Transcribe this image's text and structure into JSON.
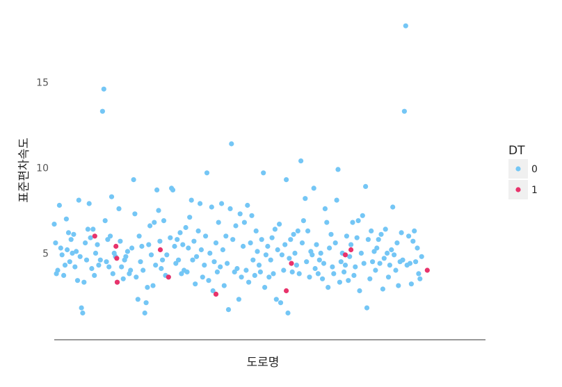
{
  "chart_data": {
    "type": "scatter",
    "xlabel": "도로명",
    "ylabel": "표준편차속도",
    "ylim": [
      0.3,
      19
    ],
    "yticks": [
      5,
      10,
      15
    ],
    "grid": false,
    "legend": {
      "title": "DT",
      "placement": "right",
      "entries": [
        {
          "label": "0",
          "color": "#74C6F5"
        },
        {
          "label": "1",
          "color": "#E8336B"
        }
      ]
    },
    "x_range": [
      0,
      100
    ],
    "series": [
      {
        "name": "0",
        "color": "#74C6F5",
        "points": [
          [
            0.0,
            6.7
          ],
          [
            0.3,
            5.6
          ],
          [
            0.5,
            3.8
          ],
          [
            0.8,
            4.0
          ],
          [
            1.2,
            7.8
          ],
          [
            1.5,
            5.3
          ],
          [
            1.8,
            4.9
          ],
          [
            2.2,
            3.7
          ],
          [
            2.5,
            4.3
          ],
          [
            2.8,
            7.0
          ],
          [
            3.0,
            5.2
          ],
          [
            3.3,
            6.2
          ],
          [
            3.6,
            4.5
          ],
          [
            3.9,
            5.8
          ],
          [
            4.2,
            5.0
          ],
          [
            4.5,
            6.1
          ],
          [
            4.8,
            4.2
          ],
          [
            5.1,
            5.1
          ],
          [
            5.4,
            3.4
          ],
          [
            5.7,
            8.1
          ],
          [
            6.0,
            4.8
          ],
          [
            6.3,
            1.8
          ],
          [
            6.6,
            1.5
          ],
          [
            6.9,
            3.3
          ],
          [
            7.2,
            5.6
          ],
          [
            7.5,
            4.6
          ],
          [
            7.8,
            6.4
          ],
          [
            8.1,
            7.9
          ],
          [
            8.4,
            5.9
          ],
          [
            8.7,
            4.1
          ],
          [
            9.0,
            6.4
          ],
          [
            9.3,
            3.7
          ],
          [
            9.6,
            5.0
          ],
          [
            10.0,
            5.5
          ],
          [
            10.3,
            4.3
          ],
          [
            10.7,
            4.6
          ],
          [
            11.2,
            13.3
          ],
          [
            11.5,
            14.6
          ],
          [
            11.8,
            6.9
          ],
          [
            12.1,
            4.5
          ],
          [
            12.4,
            5.8
          ],
          [
            12.7,
            4.2
          ],
          [
            13.0,
            6.0
          ],
          [
            13.3,
            8.3
          ],
          [
            13.6,
            3.8
          ],
          [
            13.9,
            5.0
          ],
          [
            14.2,
            4.8
          ],
          [
            14.6,
            3.3
          ],
          [
            15.0,
            7.6
          ],
          [
            15.3,
            5.7
          ],
          [
            15.6,
            4.2
          ],
          [
            16.0,
            3.5
          ],
          [
            16.3,
            4.6
          ],
          [
            16.6,
            4.8
          ],
          [
            17.0,
            5.1
          ],
          [
            17.4,
            3.8
          ],
          [
            17.7,
            4.0
          ],
          [
            18.0,
            5.3
          ],
          [
            18.4,
            9.3
          ],
          [
            18.7,
            7.3
          ],
          [
            19.0,
            3.6
          ],
          [
            19.4,
            2.3
          ],
          [
            19.7,
            6.0
          ],
          [
            20.0,
            4.5
          ],
          [
            20.3,
            5.4
          ],
          [
            20.6,
            4.0
          ],
          [
            21.0,
            1.5
          ],
          [
            21.3,
            2.1
          ],
          [
            21.6,
            3.0
          ],
          [
            21.9,
            5.5
          ],
          [
            22.2,
            6.6
          ],
          [
            22.5,
            4.9
          ],
          [
            22.9,
            3.1
          ],
          [
            23.2,
            6.8
          ],
          [
            23.5,
            4.3
          ],
          [
            23.8,
            8.7
          ],
          [
            24.2,
            7.5
          ],
          [
            24.5,
            5.7
          ],
          [
            24.8,
            4.1
          ],
          [
            25.1,
            4.6
          ],
          [
            25.4,
            6.9
          ],
          [
            25.8,
            3.7
          ],
          [
            26.1,
            4.9
          ],
          [
            26.5,
            3.6
          ],
          [
            26.9,
            5.9
          ],
          [
            27.2,
            8.8
          ],
          [
            27.5,
            8.7
          ],
          [
            27.9,
            5.4
          ],
          [
            28.2,
            4.4
          ],
          [
            28.5,
            5.8
          ],
          [
            28.8,
            4.6
          ],
          [
            29.2,
            6.2
          ],
          [
            29.5,
            3.8
          ],
          [
            29.8,
            5.5
          ],
          [
            30.1,
            4.0
          ],
          [
            30.5,
            6.5
          ],
          [
            30.8,
            3.9
          ],
          [
            31.1,
            5.3
          ],
          [
            31.4,
            7.1
          ],
          [
            31.8,
            8.1
          ],
          [
            32.1,
            4.6
          ],
          [
            32.4,
            5.7
          ],
          [
            32.7,
            3.2
          ],
          [
            33.0,
            4.8
          ],
          [
            33.4,
            6.3
          ],
          [
            33.8,
            7.9
          ],
          [
            34.1,
            5.2
          ],
          [
            34.4,
            3.6
          ],
          [
            34.8,
            4.3
          ],
          [
            35.1,
            6.0
          ],
          [
            35.4,
            9.7
          ],
          [
            35.8,
            3.4
          ],
          [
            36.1,
            5.0
          ],
          [
            36.5,
            7.7
          ],
          [
            36.8,
            2.8
          ],
          [
            37.1,
            4.5
          ],
          [
            37.5,
            5.6
          ],
          [
            37.8,
            3.9
          ],
          [
            38.1,
            6.8
          ],
          [
            38.5,
            4.2
          ],
          [
            38.8,
            7.9
          ],
          [
            39.1,
            5.2
          ],
          [
            39.4,
            3.1
          ],
          [
            39.8,
            6.0
          ],
          [
            40.1,
            4.4
          ],
          [
            40.4,
            1.7
          ],
          [
            40.8,
            7.6
          ],
          [
            41.1,
            11.4
          ],
          [
            41.4,
            5.8
          ],
          [
            41.8,
            3.9
          ],
          [
            42.1,
            6.6
          ],
          [
            42.4,
            4.1
          ],
          [
            42.8,
            2.3
          ],
          [
            43.1,
            7.3
          ],
          [
            43.4,
            3.6
          ],
          [
            43.8,
            5.4
          ],
          [
            44.1,
            6.8
          ],
          [
            44.5,
            4.0
          ],
          [
            44.8,
            7.8
          ],
          [
            45.1,
            3.3
          ],
          [
            45.5,
            5.6
          ],
          [
            45.8,
            7.2
          ],
          [
            46.1,
            4.6
          ],
          [
            46.5,
            3.7
          ],
          [
            46.8,
            6.3
          ],
          [
            47.1,
            5.1
          ],
          [
            47.5,
            4.3
          ],
          [
            47.8,
            3.9
          ],
          [
            48.1,
            5.8
          ],
          [
            48.5,
            9.7
          ],
          [
            48.8,
            3.0
          ],
          [
            49.1,
            4.9
          ],
          [
            49.5,
            5.4
          ],
          [
            49.8,
            3.6
          ],
          [
            50.2,
            4.6
          ],
          [
            50.5,
            5.9
          ],
          [
            50.8,
            3.8
          ],
          [
            51.2,
            6.4
          ],
          [
            51.5,
            2.3
          ],
          [
            51.8,
            5.2
          ],
          [
            52.2,
            6.7
          ],
          [
            52.5,
            2.1
          ],
          [
            52.8,
            4.9
          ],
          [
            53.2,
            4.0
          ],
          [
            53.5,
            5.5
          ],
          [
            53.8,
            9.3
          ],
          [
            54.2,
            1.5
          ],
          [
            54.5,
            4.7
          ],
          [
            54.8,
            5.8
          ],
          [
            55.2,
            3.9
          ],
          [
            55.5,
            6.1
          ],
          [
            55.8,
            5.0
          ],
          [
            56.2,
            4.3
          ],
          [
            56.5,
            6.3
          ],
          [
            56.8,
            3.8
          ],
          [
            57.2,
            10.4
          ],
          [
            57.5,
            5.6
          ],
          [
            57.8,
            6.9
          ],
          [
            58.2,
            8.2
          ],
          [
            58.5,
            4.5
          ],
          [
            58.8,
            6.3
          ],
          [
            59.2,
            3.6
          ],
          [
            59.5,
            5.1
          ],
          [
            59.8,
            4.9
          ],
          [
            60.2,
            8.8
          ],
          [
            60.5,
            4.1
          ],
          [
            60.8,
            5.5
          ],
          [
            61.2,
            3.8
          ],
          [
            61.5,
            4.6
          ],
          [
            61.8,
            5.0
          ],
          [
            62.2,
            3.5
          ],
          [
            62.5,
            4.4
          ],
          [
            62.8,
            7.6
          ],
          [
            63.2,
            6.8
          ],
          [
            63.5,
            3.0
          ],
          [
            63.8,
            5.3
          ],
          [
            64.2,
            6.1
          ],
          [
            64.5,
            4.2
          ],
          [
            64.8,
            3.8
          ],
          [
            65.2,
            5.6
          ],
          [
            65.5,
            8.1
          ],
          [
            65.8,
            9.9
          ],
          [
            66.2,
            3.3
          ],
          [
            66.5,
            4.5
          ],
          [
            66.8,
            5.0
          ],
          [
            67.2,
            3.9
          ],
          [
            67.5,
            4.3
          ],
          [
            67.8,
            6.0
          ],
          [
            68.2,
            3.4
          ],
          [
            68.5,
            4.8
          ],
          [
            68.8,
            5.5
          ],
          [
            69.2,
            6.8
          ],
          [
            69.5,
            3.7
          ],
          [
            69.8,
            4.2
          ],
          [
            70.2,
            5.9
          ],
          [
            70.5,
            6.9
          ],
          [
            70.8,
            2.8
          ],
          [
            71.2,
            5.0
          ],
          [
            71.5,
            7.2
          ],
          [
            71.8,
            4.4
          ],
          [
            72.2,
            8.9
          ],
          [
            72.5,
            1.8
          ],
          [
            72.8,
            5.8
          ],
          [
            73.2,
            3.5
          ],
          [
            73.5,
            6.3
          ],
          [
            73.8,
            4.5
          ],
          [
            74.2,
            5.1
          ],
          [
            74.5,
            4.0
          ],
          [
            74.8,
            5.3
          ],
          [
            75.2,
            5.8
          ],
          [
            75.5,
            4.4
          ],
          [
            75.8,
            6.1
          ],
          [
            76.2,
            2.9
          ],
          [
            76.5,
            4.7
          ],
          [
            76.8,
            6.4
          ],
          [
            77.2,
            5.0
          ],
          [
            77.5,
            3.6
          ],
          [
            77.8,
            4.3
          ],
          [
            78.2,
            5.2
          ],
          [
            78.5,
            7.7
          ],
          [
            78.8,
            4.9
          ],
          [
            79.2,
            4.0
          ],
          [
            79.5,
            5.6
          ],
          [
            79.8,
            3.1
          ],
          [
            80.2,
            4.5
          ],
          [
            80.5,
            6.2
          ],
          [
            80.8,
            4.6
          ],
          [
            81.2,
            13.3
          ],
          [
            81.5,
            18.3
          ],
          [
            81.8,
            4.3
          ],
          [
            82.2,
            6.0
          ],
          [
            82.5,
            4.4
          ],
          [
            82.8,
            3.2
          ],
          [
            83.2,
            5.7
          ],
          [
            83.5,
            6.3
          ],
          [
            83.8,
            4.5
          ],
          [
            84.2,
            5.3
          ],
          [
            84.5,
            3.8
          ],
          [
            84.8,
            3.5
          ],
          [
            85.2,
            4.8
          ]
        ]
      },
      {
        "name": "1",
        "color": "#E8336B",
        "points": [
          [
            9.4,
            6.0
          ],
          [
            14.3,
            5.4
          ],
          [
            14.5,
            4.7
          ],
          [
            14.6,
            3.3
          ],
          [
            24.6,
            5.2
          ],
          [
            26.5,
            3.6
          ],
          [
            37.5,
            2.6
          ],
          [
            53.8,
            2.8
          ],
          [
            55.0,
            4.4
          ],
          [
            67.5,
            4.9
          ],
          [
            68.8,
            5.2
          ],
          [
            86.5,
            4.0
          ]
        ]
      }
    ]
  }
}
